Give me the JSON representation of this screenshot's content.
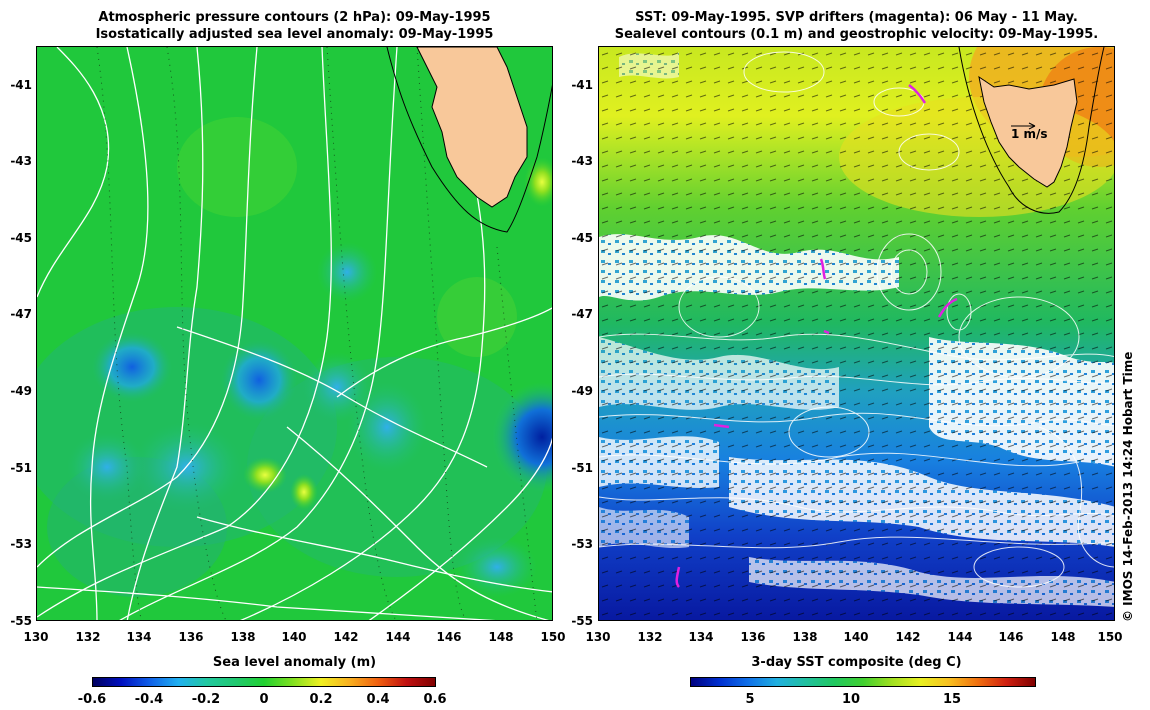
{
  "left_panel": {
    "title_line1": "Atmospheric pressure contours (2 hPa): 09-May-1995",
    "title_line2": "Isostatically adjusted sea level anomaly: 09-May-1995",
    "colorbar_title": "Sea level anomaly (m)",
    "colorbar_ticks": [
      "-0.6",
      "-0.4",
      "-0.2",
      "0",
      "0.2",
      "0.4",
      "0.6"
    ],
    "colorbar_range": [
      -0.6,
      0.6
    ]
  },
  "right_panel": {
    "title_line1": "SST: 09-May-1995. SVP drifters (magenta): 06 May - 11 May.",
    "title_line2": "Sealevel contours (0.1 m) and geostrophic velocity: 09-May-1995.",
    "colorbar_title": "3-day SST composite (deg C)",
    "colorbar_ticks": [
      "5",
      "10",
      "15"
    ],
    "scale_label": "1 m/s"
  },
  "axes": {
    "lat_ticks": [
      "-41",
      "-43",
      "-45",
      "-47",
      "-49",
      "-51",
      "-53",
      "-55"
    ],
    "lon_ticks": [
      "130",
      "132",
      "134",
      "136",
      "138",
      "140",
      "142",
      "144",
      "146",
      "148",
      "150"
    ],
    "lon_range": [
      130,
      150
    ],
    "lat_range": [
      -55,
      -40
    ]
  },
  "credit": "© IMOS 14-Feb-2013 14:24 Hobart Time",
  "colors": {
    "land": "#f8c89a",
    "ocean_green": "#19c83c",
    "contour": "#ffffff",
    "drifter": "#e020e0"
  }
}
